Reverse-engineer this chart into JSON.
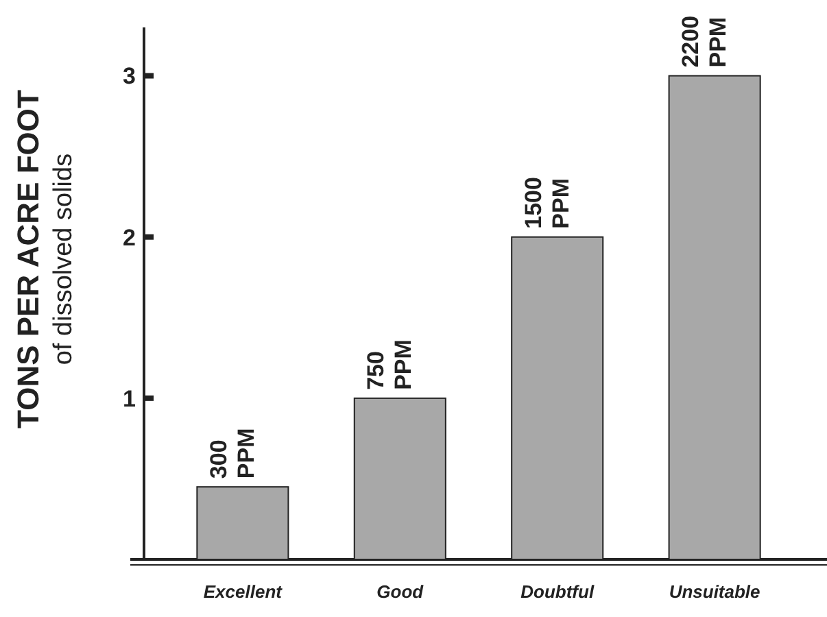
{
  "chart_data": {
    "type": "bar",
    "ylabel": "TONS PER ACRE FOOT\nof dissolved solids",
    "categories": [
      "Excellent",
      "Good",
      "Doubtful",
      "Unsuitable"
    ],
    "values": [
      0.45,
      1.0,
      2.0,
      3.0
    ],
    "annotations": [
      {
        "text": "300 PPM",
        "x": "Excellent",
        "y": 0.45
      },
      {
        "text": "750 PPM",
        "x": "Good",
        "y": 1.0
      },
      {
        "text": "1500 PPM",
        "x": "Doubtful",
        "y": 2.0
      },
      {
        "text": "2200 PPM",
        "x": "Unsuitable",
        "y": 3.0
      }
    ],
    "color": "#a8a8a8",
    "ylim": [
      0,
      3.3
    ],
    "yticks": [
      1,
      2,
      3
    ]
  }
}
